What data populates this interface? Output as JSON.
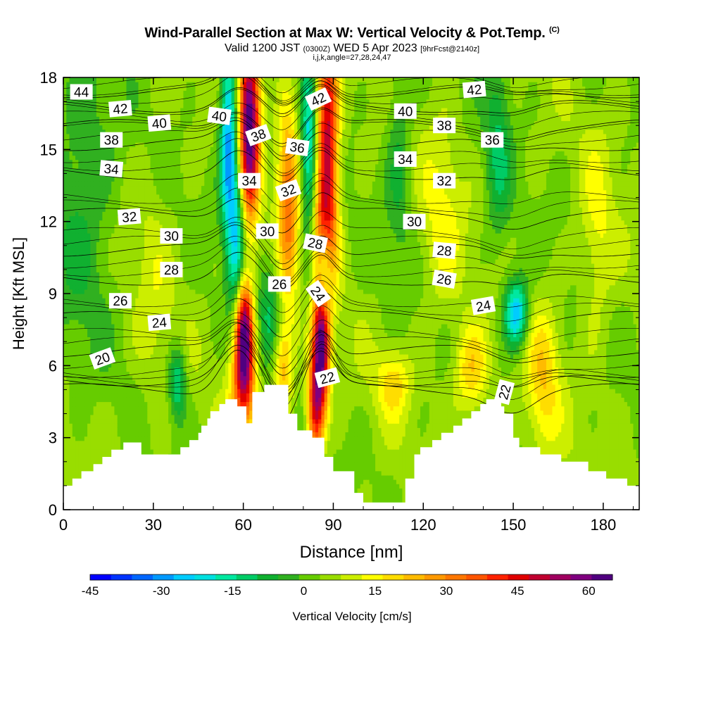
{
  "title": {
    "main": "Wind-Parallel Section at Max W: Vertical Velocity & Pot.Temp.",
    "copyright": "(C)",
    "valid_prefix": "Valid 1200 JST",
    "valid_utc": "(0300Z)",
    "valid_date": "WED 5 Apr 2023",
    "forecast": "[9hrFcst@2140z]",
    "indices": "i,j,k,angle=27,28,24,47"
  },
  "chart_data": {
    "type": "heatmap",
    "xlabel": "Distance [nm]",
    "ylabel": "Height [Kft MSL]",
    "xlim": [
      0,
      192
    ],
    "ylim": [
      0,
      18
    ],
    "x_ticks": [
      0,
      30,
      60,
      90,
      120,
      150,
      180
    ],
    "y_ticks": [
      0,
      3,
      6,
      9,
      12,
      15,
      18
    ],
    "colorbar": {
      "label": "Vertical Velocity [cm/s]",
      "range": [
        -45,
        65
      ],
      "ticks": [
        -45,
        -30,
        -15,
        0,
        15,
        30,
        45,
        60
      ],
      "colors": [
        "#0000ff",
        "#0033ff",
        "#0066ff",
        "#0099ff",
        "#00ccff",
        "#00e0e0",
        "#00e8a0",
        "#00cc66",
        "#10b030",
        "#30b020",
        "#66cc00",
        "#99dd00",
        "#ccee00",
        "#ffff00",
        "#ffdd00",
        "#ffbb00",
        "#ff9900",
        "#ff7700",
        "#ff5500",
        "#ff2200",
        "#e00000",
        "#c00030",
        "#a00060",
        "#800080",
        "#500080"
      ]
    },
    "terrain_profile": [
      [
        0,
        1.0
      ],
      [
        3,
        1.0
      ],
      [
        3,
        1.3
      ],
      [
        6,
        1.3
      ],
      [
        6,
        1.6
      ],
      [
        10,
        1.6
      ],
      [
        10,
        1.9
      ],
      [
        13,
        1.9
      ],
      [
        13,
        2.2
      ],
      [
        16,
        2.2
      ],
      [
        16,
        2.5
      ],
      [
        20,
        2.5
      ],
      [
        20,
        2.8
      ],
      [
        26,
        2.8
      ],
      [
        26,
        2.3
      ],
      [
        39,
        2.3
      ],
      [
        39,
        2.6
      ],
      [
        42,
        2.6
      ],
      [
        42,
        2.9
      ],
      [
        45,
        2.9
      ],
      [
        45,
        3.2
      ],
      [
        46,
        3.2
      ],
      [
        46,
        3.5
      ],
      [
        48,
        3.5
      ],
      [
        48,
        3.8
      ],
      [
        49,
        3.8
      ],
      [
        49,
        4.1
      ],
      [
        52,
        4.1
      ],
      [
        52,
        4.4
      ],
      [
        54,
        4.4
      ],
      [
        54,
        4.6
      ],
      [
        58,
        4.6
      ],
      [
        58,
        4.3
      ],
      [
        61,
        4.3
      ],
      [
        61,
        3.6
      ],
      [
        63,
        3.6
      ],
      [
        63,
        4.9
      ],
      [
        67,
        4.9
      ],
      [
        67,
        5.2
      ],
      [
        75,
        5.2
      ],
      [
        75,
        4.0
      ],
      [
        78,
        4.0
      ],
      [
        78,
        3.3
      ],
      [
        83,
        3.3
      ],
      [
        83,
        3.0
      ],
      [
        87,
        3.0
      ],
      [
        87,
        2.2
      ],
      [
        90,
        2.2
      ],
      [
        90,
        1.6
      ],
      [
        97,
        1.6
      ],
      [
        97,
        0.7
      ],
      [
        100,
        0.7
      ],
      [
        100,
        0.3
      ],
      [
        114,
        0.3
      ],
      [
        114,
        1.3
      ],
      [
        117,
        1.3
      ],
      [
        117,
        2.3
      ],
      [
        119,
        2.3
      ],
      [
        119,
        2.6
      ],
      [
        123,
        2.6
      ],
      [
        123,
        2.9
      ],
      [
        126,
        2.9
      ],
      [
        126,
        3.2
      ],
      [
        130,
        3.2
      ],
      [
        130,
        3.5
      ],
      [
        133,
        3.5
      ],
      [
        133,
        3.8
      ],
      [
        136,
        3.8
      ],
      [
        136,
        4.1
      ],
      [
        139,
        4.1
      ],
      [
        139,
        4.4
      ],
      [
        141,
        4.4
      ],
      [
        141,
        4.6
      ],
      [
        146,
        4.6
      ],
      [
        146,
        4.3
      ],
      [
        147,
        4.3
      ],
      [
        147,
        4.0
      ],
      [
        150,
        4.0
      ],
      [
        150,
        3.0
      ],
      [
        152,
        3.0
      ],
      [
        152,
        2.6
      ],
      [
        159,
        2.6
      ],
      [
        159,
        2.3
      ],
      [
        166,
        2.3
      ],
      [
        166,
        2.0
      ],
      [
        175,
        2.0
      ],
      [
        175,
        1.6
      ],
      [
        181,
        1.6
      ],
      [
        181,
        1.3
      ],
      [
        188,
        1.3
      ],
      [
        188,
        1.0
      ],
      [
        192,
        1.0
      ]
    ],
    "w_features": [
      {
        "x": 60,
        "z": 7.5,
        "w": 62,
        "sx": 2.2,
        "sz": 1.6
      },
      {
        "x": 60,
        "z": 5.0,
        "w": 32,
        "sx": 3.0,
        "sz": 1.5
      },
      {
        "x": 62,
        "z": 16.2,
        "w": 62,
        "sx": 2.4,
        "sz": 2.8
      },
      {
        "x": 58,
        "z": 10.5,
        "w": -26,
        "sx": 2.0,
        "sz": 3.0
      },
      {
        "x": 55,
        "z": 15.5,
        "w": -34,
        "sx": 2.0,
        "sz": 3.0
      },
      {
        "x": 86,
        "z": 7.0,
        "w": 58,
        "sx": 2.0,
        "sz": 1.8
      },
      {
        "x": 84,
        "z": 4.2,
        "w": 40,
        "sx": 2.0,
        "sz": 1.5
      },
      {
        "x": 88,
        "z": 15.0,
        "w": 48,
        "sx": 2.6,
        "sz": 3.6
      },
      {
        "x": 86,
        "z": 11.5,
        "w": 20,
        "sx": 3.0,
        "sz": 1.5
      },
      {
        "x": 87,
        "z": 10.0,
        "w": -30,
        "sx": 1.8,
        "sz": 1.5
      },
      {
        "x": 82,
        "z": 14.5,
        "w": -26,
        "sx": 2.0,
        "sz": 3.0
      },
      {
        "x": 75,
        "z": 13.0,
        "w": 28,
        "sx": 2.5,
        "sz": 3.0
      },
      {
        "x": 73,
        "z": 6.0,
        "w": 22,
        "sx": 2.5,
        "sz": 1.5
      },
      {
        "x": 69,
        "z": 8.0,
        "w": -14,
        "sx": 3.0,
        "sz": 1.6
      },
      {
        "x": 38,
        "z": 5.3,
        "w": -20,
        "sx": 2.0,
        "sz": 1.1
      },
      {
        "x": 151,
        "z": 8.2,
        "w": -32,
        "sx": 2.8,
        "sz": 1.0
      },
      {
        "x": 160,
        "z": 5.4,
        "w": 15,
        "sx": 4.0,
        "sz": 2.2
      },
      {
        "x": 136,
        "z": 5.8,
        "w": 18,
        "sx": 4.0,
        "sz": 1.3
      },
      {
        "x": 110,
        "z": 5.3,
        "w": 14,
        "sx": 4.0,
        "sz": 1.0
      },
      {
        "x": 145,
        "z": 15.0,
        "w": -13,
        "sx": 3.0,
        "sz": 3.0
      },
      {
        "x": 112,
        "z": 15.0,
        "w": -11,
        "sx": 3.0,
        "sz": 3.0
      },
      {
        "x": 6,
        "z": 13.0,
        "w": -11,
        "sx": 8.0,
        "sz": 4.0
      },
      {
        "x": 178,
        "z": 11.0,
        "w": 9,
        "sx": 4.0,
        "sz": 3.0
      },
      {
        "x": 126,
        "z": 12.0,
        "w": 9,
        "sx": 5.0,
        "sz": 3.0
      },
      {
        "x": 30,
        "z": 9.0,
        "w": 5,
        "sx": 5.0,
        "sz": 4.0
      }
    ],
    "theta_contours": [
      {
        "value": 20,
        "z0": 5.0,
        "dz": 3.2
      },
      {
        "value": 22,
        "z0": 5.4,
        "dz": 1.5
      },
      {
        "value": 24,
        "z0": 6.6,
        "dz": 1.2
      },
      {
        "value": 26,
        "z0": 8.0,
        "dz": 0.9
      },
      {
        "value": 28,
        "z0": 9.6,
        "dz": 0.7
      },
      {
        "value": 30,
        "z0": 10.8,
        "dz": 0.6
      },
      {
        "value": 32,
        "z0": 12.3,
        "dz": 0.5
      },
      {
        "value": 34,
        "z0": 14.0,
        "dz": 0.4
      },
      {
        "value": 36,
        "z0": 15.2,
        "dz": 0.3
      },
      {
        "value": 38,
        "z0": 16.0,
        "dz": 0.2
      },
      {
        "value": 40,
        "z0": 16.8,
        "dz": 0.1
      },
      {
        "value": 42,
        "z0": 17.4,
        "dz": 0.0
      }
    ],
    "contour_labels": [
      {
        "text": "44",
        "x": 6,
        "z": 17.4,
        "rot": 0
      },
      {
        "text": "42",
        "x": 19,
        "z": 16.7,
        "rot": -5
      },
      {
        "text": "40",
        "x": 32,
        "z": 16.1,
        "rot": -5
      },
      {
        "text": "40",
        "x": 52,
        "z": 16.4,
        "rot": 8
      },
      {
        "text": "38",
        "x": 16,
        "z": 15.4,
        "rot": 0
      },
      {
        "text": "38",
        "x": 65,
        "z": 15.6,
        "rot": -20
      },
      {
        "text": "42",
        "x": 85,
        "z": 17.1,
        "rot": -25
      },
      {
        "text": "36",
        "x": 78,
        "z": 15.1,
        "rot": 8
      },
      {
        "text": "34",
        "x": 16,
        "z": 14.2,
        "rot": 5
      },
      {
        "text": "34",
        "x": 62,
        "z": 13.7,
        "rot": 0
      },
      {
        "text": "32",
        "x": 75,
        "z": 13.3,
        "rot": -20
      },
      {
        "text": "32",
        "x": 22,
        "z": 12.2,
        "rot": -5
      },
      {
        "text": "30",
        "x": 36,
        "z": 11.4,
        "rot": 0
      },
      {
        "text": "30",
        "x": 68,
        "z": 11.6,
        "rot": 0
      },
      {
        "text": "28",
        "x": 84,
        "z": 11.1,
        "rot": 12
      },
      {
        "text": "28",
        "x": 36,
        "z": 10.0,
        "rot": 0
      },
      {
        "text": "26",
        "x": 72,
        "z": 9.4,
        "rot": 0
      },
      {
        "text": "24",
        "x": 85,
        "z": 9.0,
        "rot": 55
      },
      {
        "text": "26",
        "x": 19,
        "z": 8.7,
        "rot": 0
      },
      {
        "text": "24",
        "x": 32,
        "z": 7.8,
        "rot": -5
      },
      {
        "text": "20",
        "x": 13,
        "z": 6.3,
        "rot": -20
      },
      {
        "text": "22",
        "x": 88,
        "z": 5.5,
        "rot": -15
      },
      {
        "text": "22",
        "x": 147,
        "z": 4.9,
        "rot": -75
      },
      {
        "text": "42",
        "x": 137,
        "z": 17.5,
        "rot": -5
      },
      {
        "text": "40",
        "x": 114,
        "z": 16.6,
        "rot": 0
      },
      {
        "text": "38",
        "x": 127,
        "z": 16.0,
        "rot": 0
      },
      {
        "text": "36",
        "x": 143,
        "z": 15.4,
        "rot": 0
      },
      {
        "text": "34",
        "x": 114,
        "z": 14.6,
        "rot": 0
      },
      {
        "text": "32",
        "x": 127,
        "z": 13.7,
        "rot": 0
      },
      {
        "text": "30",
        "x": 117,
        "z": 12.0,
        "rot": 0
      },
      {
        "text": "28",
        "x": 127,
        "z": 10.8,
        "rot": 5
      },
      {
        "text": "26",
        "x": 127,
        "z": 9.6,
        "rot": 10
      },
      {
        "text": "24",
        "x": 140,
        "z": 8.5,
        "rot": -10
      }
    ]
  }
}
